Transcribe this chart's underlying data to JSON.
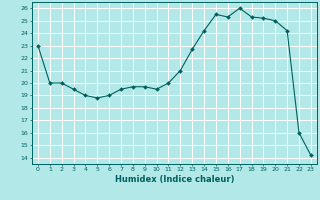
{
  "x": [
    0,
    1,
    2,
    3,
    4,
    5,
    6,
    7,
    8,
    9,
    10,
    11,
    12,
    13,
    14,
    15,
    16,
    17,
    18,
    19,
    20,
    21,
    22,
    23
  ],
  "y": [
    23,
    20,
    20,
    19.5,
    19,
    18.8,
    19,
    19.5,
    19.7,
    19.7,
    19.5,
    20,
    21,
    22.7,
    24.2,
    25.5,
    25.3,
    26,
    25.3,
    25.2,
    25,
    24.2,
    16,
    14.2
  ],
  "line_color": "#006060",
  "marker": "D",
  "marker_size": 2.0,
  "bg_color": "#b2e8e8",
  "grid_color": "#ffffff",
  "xlabel": "Humidex (Indice chaleur)",
  "ylabel_ticks": [
    14,
    15,
    16,
    17,
    18,
    19,
    20,
    21,
    22,
    23,
    24,
    25,
    26
  ],
  "xlim": [
    -0.5,
    23.5
  ],
  "ylim": [
    13.5,
    26.5
  ],
  "xticks": [
    0,
    1,
    2,
    3,
    4,
    5,
    6,
    7,
    8,
    9,
    10,
    11,
    12,
    13,
    14,
    15,
    16,
    17,
    18,
    19,
    20,
    21,
    22,
    23
  ]
}
